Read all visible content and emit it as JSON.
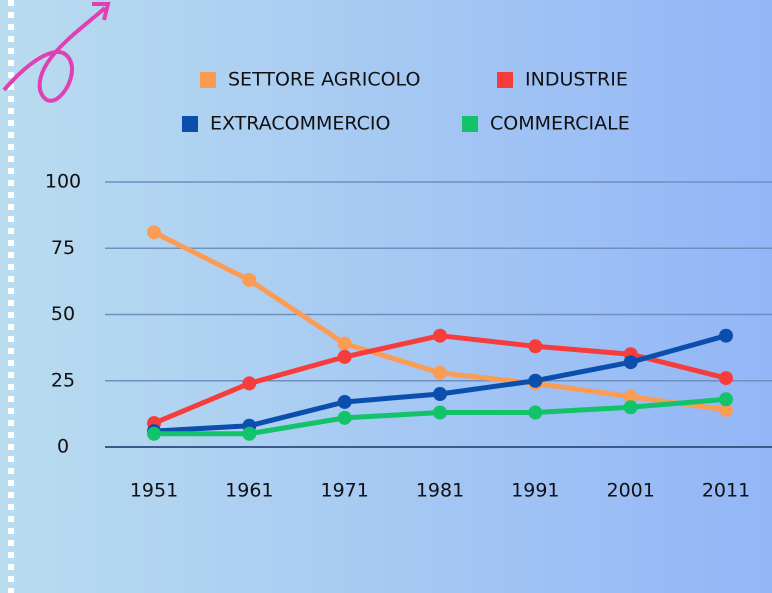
{
  "chart_data": {
    "type": "line",
    "categories": [
      "1951",
      "1961",
      "1971",
      "1981",
      "1991",
      "2001",
      "2011"
    ],
    "series": [
      {
        "name": "SETTORE AGRICOLO",
        "color": "#fb9c54",
        "values": [
          81,
          63,
          39,
          28,
          24,
          19,
          14
        ]
      },
      {
        "name": "INDUSTRIE",
        "color": "#f73c3c",
        "values": [
          9,
          24,
          34,
          42,
          38,
          35,
          26
        ]
      },
      {
        "name": "EXTRACOMMERCIO",
        "color": "#0b4fae",
        "values": [
          6,
          8,
          17,
          20,
          25,
          32,
          42
        ]
      },
      {
        "name": "COMMERCIALE",
        "color": "#12c36a",
        "values": [
          5,
          5,
          11,
          13,
          13,
          15,
          18
        ]
      }
    ],
    "ylim": [
      0,
      100
    ],
    "yticks": [
      0,
      25,
      50,
      75,
      100
    ],
    "grid": true
  }
}
